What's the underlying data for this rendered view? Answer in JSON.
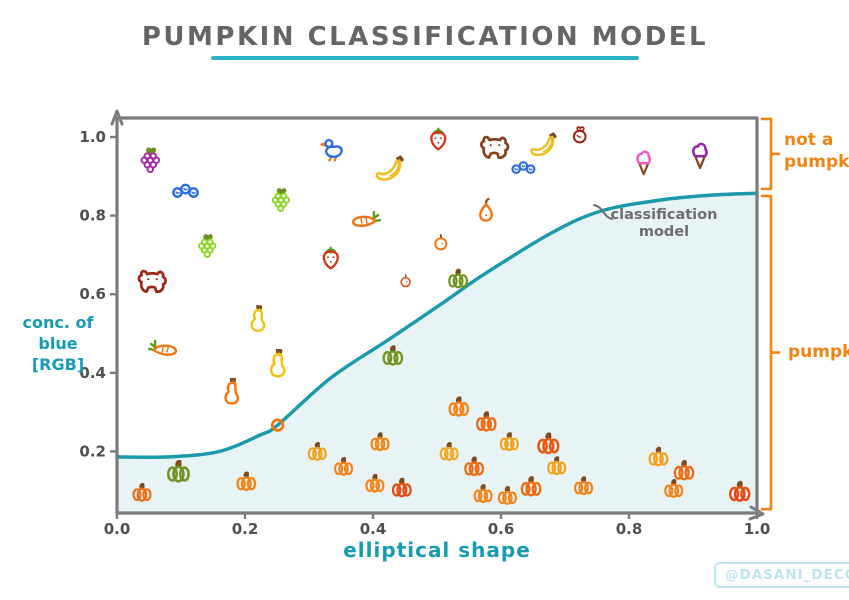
{
  "title": "PUMPKIN CLASSIFICATION MODEL",
  "watermark": "@DASANI_DECODED",
  "colors": {
    "teal": "#169cb2",
    "teal_underline": "#2ab3c4",
    "orange": "#f28412",
    "gray_axis": "#7b7b7b",
    "gray_text": "#4f4f4f",
    "curve": "#1b9aab",
    "curve_fill": "#e8f3f5",
    "watermark": "#bfe5ec",
    "title": "#656565",
    "annotation": "#6e6e6e"
  },
  "chart_data": {
    "type": "scatter",
    "title": "PUMPKIN CLASSIFICATION MODEL",
    "xlabel": "elliptical shape",
    "ylabel": "conc. of blue [RGB]",
    "ylabel_lines": [
      "conc. of",
      "blue",
      "[RGB]"
    ],
    "xlim": [
      0,
      1
    ],
    "ylim": [
      0,
      1
    ],
    "grid": false,
    "xticks": [
      "0.0",
      "0.2",
      "0.4",
      "0.6",
      "0.8",
      "1.0"
    ],
    "yticks": [
      "0.2",
      "0.4",
      "0.6",
      "0.8",
      "1.0"
    ],
    "annotation": {
      "label": "classification model",
      "lines": [
        "classification",
        "model"
      ]
    },
    "regions": [
      {
        "label": "not a pumpkin",
        "label_lines": [
          "not a",
          "pumpkin"
        ],
        "y_from": 0.868,
        "y_to": 1.046
      },
      {
        "label": "pumpkin",
        "label_lines": [
          "pumpkin"
        ],
        "y_from": 0.053,
        "y_to": 0.85
      }
    ],
    "curve": {
      "label": "classification model",
      "points": [
        [
          0,
          0.186
        ],
        [
          0.08,
          0.186
        ],
        [
          0.16,
          0.2
        ],
        [
          0.224,
          0.242
        ],
        [
          0.251,
          0.267
        ],
        [
          0.334,
          0.387
        ],
        [
          0.423,
          0.483
        ],
        [
          0.511,
          0.58
        ],
        [
          0.572,
          0.649
        ],
        [
          0.679,
          0.756
        ],
        [
          0.757,
          0.812
        ],
        [
          0.851,
          0.84
        ],
        [
          0.929,
          0.852
        ],
        [
          1.0,
          0.857
        ]
      ]
    },
    "points": [
      {
        "kind": "grapes",
        "x": 0.052,
        "y": 0.936,
        "color": "#a12f9c",
        "size": 30
      },
      {
        "kind": "blueberries",
        "x": 0.107,
        "y": 0.865,
        "color": "#2e6de0",
        "size": 30
      },
      {
        "kind": "grapes",
        "x": 0.256,
        "y": 0.835,
        "color": "#86d621",
        "size": 28
      },
      {
        "kind": "grapes",
        "x": 0.141,
        "y": 0.718,
        "color": "#86d621",
        "size": 28
      },
      {
        "kind": "dog",
        "x": 0.056,
        "y": 0.631,
        "color": "#9c2513",
        "size": 34
      },
      {
        "kind": "duck",
        "x": 0.339,
        "y": 0.972,
        "color": "#2e6de0",
        "size": 30
      },
      {
        "kind": "banana",
        "x": 0.428,
        "y": 0.916,
        "color": "#f0bd1c",
        "size": 32
      },
      {
        "kind": "strawberry",
        "x": 0.502,
        "y": 0.99,
        "color": "#d63218",
        "size": 28
      },
      {
        "kind": "dog",
        "x": 0.591,
        "y": 0.972,
        "color": "#84421c",
        "size": 34
      },
      {
        "kind": "banana",
        "x": 0.668,
        "y": 0.977,
        "color": "#f0bd1c",
        "size": 30
      },
      {
        "kind": "blueberries",
        "x": 0.635,
        "y": 0.924,
        "color": "#2e6de0",
        "size": 27
      },
      {
        "kind": "tomato",
        "x": 0.723,
        "y": 1.0,
        "color": "#9c2513",
        "size": 25
      },
      {
        "kind": "icecream",
        "x": 0.823,
        "y": 0.936,
        "color": "#ff52c8",
        "size": 30
      },
      {
        "kind": "icecream",
        "x": 0.911,
        "y": 0.954,
        "color": "#9127ad",
        "size": 32
      },
      {
        "kind": "carrot",
        "x": 0.389,
        "y": 0.781,
        "color": "#f07318",
        "size": 30
      },
      {
        "kind": "pear",
        "x": 0.575,
        "y": 0.809,
        "color": "#f4740e",
        "size": 30
      },
      {
        "kind": "persimmon",
        "x": 0.506,
        "y": 0.728,
        "color": "#f4740e",
        "size": 24
      },
      {
        "kind": "strawberry",
        "x": 0.334,
        "y": 0.687,
        "color": "#d63218",
        "size": 28
      },
      {
        "kind": "persimmon",
        "x": 0.451,
        "y": 0.631,
        "color": "#e8480e",
        "size": 19
      },
      {
        "kind": "carrot",
        "x": 0.072,
        "y": 0.453,
        "color": "#f4740e",
        "size": 30,
        "flip": true
      },
      {
        "kind": "gourd",
        "x": 0.221,
        "y": 0.534,
        "color": "#f3c211",
        "size": 30
      },
      {
        "kind": "gourd",
        "x": 0.252,
        "y": 0.42,
        "color": "#f3c211",
        "size": 32
      },
      {
        "kind": "gourd",
        "x": 0.18,
        "y": 0.349,
        "color": "#f4740e",
        "size": 30
      },
      {
        "kind": "pumpkin",
        "x": 0.533,
        "y": 0.636,
        "color": "#6f941f",
        "size": 26
      },
      {
        "kind": "ring",
        "x": 0.251,
        "y": 0.267,
        "color": "#f4740e",
        "size": 20
      },
      {
        "kind": "pumpkin",
        "x": 0.431,
        "y": 0.44,
        "color": "#6f941f",
        "size": 27
      },
      {
        "kind": "pumpkin",
        "x": 0.096,
        "y": 0.145,
        "color": "#6f941f",
        "size": 30
      },
      {
        "kind": "pumpkin",
        "x": 0.039,
        "y": 0.092,
        "color": "#f26a10",
        "size": 25
      },
      {
        "kind": "pumpkin",
        "x": 0.202,
        "y": 0.12,
        "color": "#f58214",
        "size": 26
      },
      {
        "kind": "pumpkin",
        "x": 0.313,
        "y": 0.196,
        "color": "#f5a01c",
        "size": 25
      },
      {
        "kind": "pumpkin",
        "x": 0.354,
        "y": 0.158,
        "color": "#f58214",
        "size": 25
      },
      {
        "kind": "pumpkin",
        "x": 0.411,
        "y": 0.221,
        "color": "#f58214",
        "size": 25
      },
      {
        "kind": "pumpkin",
        "x": 0.403,
        "y": 0.115,
        "color": "#f58214",
        "size": 25
      },
      {
        "kind": "pumpkin",
        "x": 0.445,
        "y": 0.104,
        "color": "#e8480e",
        "size": 26
      },
      {
        "kind": "pumpkin",
        "x": 0.534,
        "y": 0.31,
        "color": "#f58214",
        "size": 27
      },
      {
        "kind": "pumpkin",
        "x": 0.577,
        "y": 0.272,
        "color": "#f26a10",
        "size": 27
      },
      {
        "kind": "pumpkin",
        "x": 0.613,
        "y": 0.221,
        "color": "#f5a01c",
        "size": 25
      },
      {
        "kind": "pumpkin",
        "x": 0.519,
        "y": 0.196,
        "color": "#f5a623",
        "size": 25
      },
      {
        "kind": "pumpkin",
        "x": 0.558,
        "y": 0.158,
        "color": "#f26a10",
        "size": 26
      },
      {
        "kind": "pumpkin",
        "x": 0.674,
        "y": 0.216,
        "color": "#e8580e",
        "size": 29
      },
      {
        "kind": "pumpkin",
        "x": 0.687,
        "y": 0.16,
        "color": "#f5a01c",
        "size": 25
      },
      {
        "kind": "pumpkin",
        "x": 0.647,
        "y": 0.107,
        "color": "#f26a10",
        "size": 27
      },
      {
        "kind": "pumpkin",
        "x": 0.572,
        "y": 0.089,
        "color": "#f58214",
        "size": 25
      },
      {
        "kind": "pumpkin",
        "x": 0.61,
        "y": 0.084,
        "color": "#f58214",
        "size": 25
      },
      {
        "kind": "pumpkin",
        "x": 0.729,
        "y": 0.109,
        "color": "#f58214",
        "size": 25
      },
      {
        "kind": "pumpkin",
        "x": 0.846,
        "y": 0.183,
        "color": "#f5a01c",
        "size": 26
      },
      {
        "kind": "pumpkin",
        "x": 0.886,
        "y": 0.148,
        "color": "#f26a10",
        "size": 27
      },
      {
        "kind": "pumpkin",
        "x": 0.87,
        "y": 0.102,
        "color": "#f58214",
        "size": 25
      },
      {
        "kind": "pumpkin",
        "x": 0.973,
        "y": 0.094,
        "color": "#e8480e",
        "size": 28
      }
    ]
  }
}
